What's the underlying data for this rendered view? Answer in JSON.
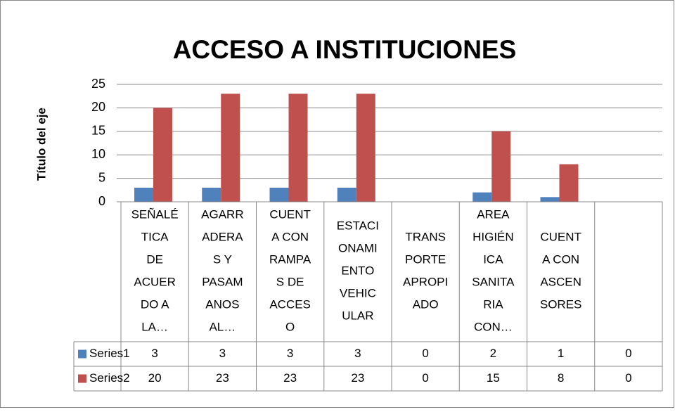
{
  "chart_data": {
    "type": "bar",
    "title": "ACCESO A INSTITUCIONES",
    "y_axis_label": "Título del eje",
    "categories": [
      [
        "SEÑALÉ",
        "TICA",
        "DE",
        "ACUER",
        "DO A",
        "LA…"
      ],
      [
        "AGARR",
        "ADERA",
        "S Y",
        "PASAM",
        "ANOS",
        "AL…"
      ],
      [
        "CUENT",
        "A CON",
        "RAMPA",
        "S DE",
        "ACCES",
        "O"
      ],
      [
        "ESTACI",
        "ONAMI",
        "ENTO",
        "VEHIC",
        "ULAR"
      ],
      [
        "TRANS",
        "PORTE",
        "APROPI",
        "ADO"
      ],
      [
        "AREA",
        "HIGIÉN",
        "ICA",
        "SANITA",
        "RIA",
        "CON…"
      ],
      [
        "CUENT",
        "A CON",
        "ASCEN",
        "SORES"
      ],
      null
    ],
    "series": [
      {
        "name": "Series1",
        "color": "#4f81bd",
        "values": [
          3,
          3,
          3,
          3,
          0,
          2,
          1,
          0
        ]
      },
      {
        "name": "Series2",
        "color": "#c0504d",
        "values": [
          20,
          23,
          23,
          23,
          0,
          15,
          8,
          0
        ]
      }
    ],
    "ylim": [
      0,
      25
    ],
    "yticks": [
      0,
      5,
      10,
      15,
      20,
      25
    ],
    "grid": true,
    "data_table": true
  }
}
